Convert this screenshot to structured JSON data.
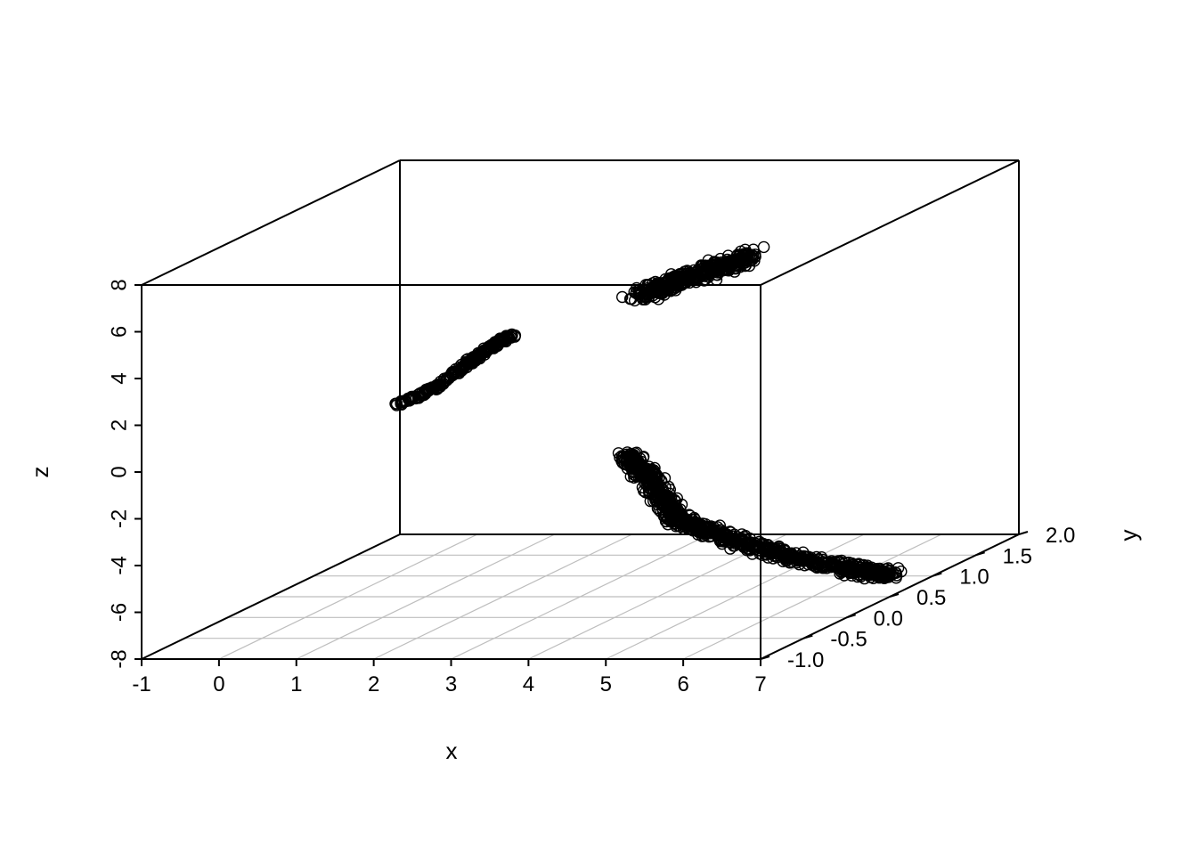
{
  "chart_data": {
    "type": "scatter",
    "projection": "3d-scatterplot3d",
    "xlabel": "x",
    "ylabel": "y",
    "zlabel": "z",
    "xlim": [
      -1,
      7
    ],
    "ylim": [
      -1.0,
      2.0
    ],
    "zlim": [
      -8,
      8
    ],
    "x_ticks": [
      "-1",
      "0",
      "1",
      "2",
      "3",
      "4",
      "5",
      "6",
      "7"
    ],
    "y_ticks": [
      "-1.0",
      "-0.5",
      "0.0",
      "0.5",
      "1.0",
      "1.5",
      "2.0"
    ],
    "z_ticks": [
      "-8",
      "-6",
      "-4",
      "-2",
      "0",
      "2",
      "4",
      "6",
      "8"
    ],
    "grid": "xy-floor",
    "marker": "open-circle",
    "colors": {
      "points": "#000000",
      "box": "#000000",
      "grid": "#bebebe"
    },
    "clusters": [
      {
        "path": [
          [
            1.0,
            0.2,
            0.8
          ],
          [
            1.3,
            0.3,
            1.2
          ],
          [
            1.6,
            0.4,
            2.0
          ],
          [
            1.8,
            0.5,
            2.6
          ],
          [
            2.0,
            0.6,
            3.0
          ]
        ],
        "spread": [
          0.05,
          0.08,
          0.15
        ],
        "count": 260
      },
      {
        "center": [
          3.7,
          1.2,
          4.5
        ],
        "extent": [
          0.7,
          0.2,
          1.0
        ],
        "count": 420
      },
      {
        "path": [
          [
            4.5,
            -0.3,
            -0.5
          ],
          [
            4.7,
            -0.2,
            -1.8
          ],
          [
            5.2,
            -0.4,
            -3.0
          ],
          [
            6.0,
            -0.5,
            -3.7
          ],
          [
            7.0,
            -0.7,
            -4.1
          ],
          [
            8.0,
            -0.9,
            -4.3
          ],
          [
            8.7,
            -1.0,
            -4.4
          ]
        ],
        "spread": [
          0.15,
          0.12,
          0.25
        ],
        "count": 900
      }
    ]
  }
}
